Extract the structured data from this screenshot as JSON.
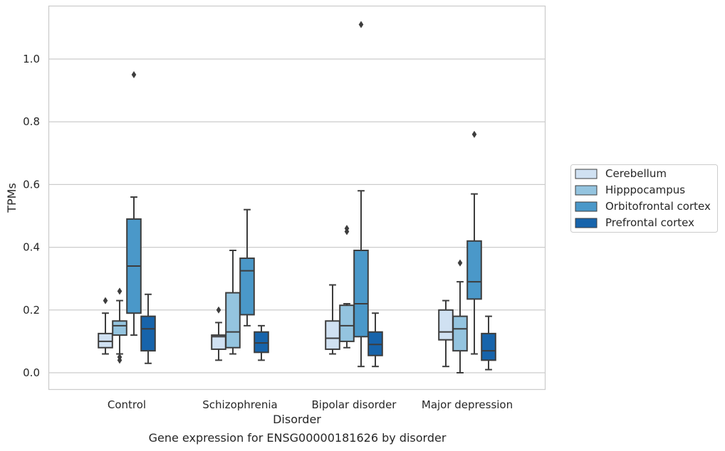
{
  "caption": "Gene expression for ENSG00000181626 by disorder",
  "chart_data": {
    "type": "box",
    "xlabel": "Disorder",
    "ylabel": "TPMs",
    "ylim": [
      -0.055,
      1.17
    ],
    "yticks": [
      0.0,
      0.2,
      0.4,
      0.6,
      0.8,
      1.0
    ],
    "ytick_labels": [
      "0.0",
      "0.2",
      "0.4",
      "0.6",
      "0.8",
      "1.0"
    ],
    "grid": "horizontal",
    "legend_position": "right",
    "categories": [
      "Control",
      "Schizophrenia",
      "Bipolar disorder",
      "Major depression"
    ],
    "series": [
      {
        "name": "Cerebellum",
        "color": "#d0e1f2",
        "boxes": [
          {
            "whisker_low": 0.06,
            "q1": 0.08,
            "median": 0.1,
            "q3": 0.125,
            "whisker_high": 0.19,
            "outliers": [
              0.23
            ]
          },
          {
            "whisker_low": 0.04,
            "q1": 0.075,
            "median": 0.115,
            "q3": 0.12,
            "whisker_high": 0.16,
            "outliers": [
              0.2
            ]
          },
          {
            "whisker_low": 0.06,
            "q1": 0.075,
            "median": 0.11,
            "q3": 0.165,
            "whisker_high": 0.28,
            "outliers": []
          },
          {
            "whisker_low": 0.02,
            "q1": 0.105,
            "median": 0.13,
            "q3": 0.2,
            "whisker_high": 0.23,
            "outliers": []
          }
        ]
      },
      {
        "name": "Hipppocampus",
        "color": "#94c4df",
        "boxes": [
          {
            "whisker_low": 0.06,
            "q1": 0.12,
            "median": 0.15,
            "q3": 0.165,
            "whisker_high": 0.23,
            "outliers": [
              0.26,
              0.05,
              0.04
            ]
          },
          {
            "whisker_low": 0.06,
            "q1": 0.08,
            "median": 0.13,
            "q3": 0.255,
            "whisker_high": 0.39,
            "outliers": []
          },
          {
            "whisker_low": 0.08,
            "q1": 0.1,
            "median": 0.15,
            "q3": 0.215,
            "whisker_high": 0.22,
            "outliers": [
              0.45,
              0.46
            ]
          },
          {
            "whisker_low": 0.0,
            "q1": 0.07,
            "median": 0.14,
            "q3": 0.18,
            "whisker_high": 0.29,
            "outliers": [
              0.35
            ]
          }
        ]
      },
      {
        "name": "Orbitofrontal cortex",
        "color": "#4a98c9",
        "boxes": [
          {
            "whisker_low": 0.12,
            "q1": 0.19,
            "median": 0.34,
            "q3": 0.49,
            "whisker_high": 0.56,
            "outliers": [
              0.95
            ]
          },
          {
            "whisker_low": 0.15,
            "q1": 0.185,
            "median": 0.325,
            "q3": 0.365,
            "whisker_high": 0.52,
            "outliers": []
          },
          {
            "whisker_low": 0.02,
            "q1": 0.115,
            "median": 0.22,
            "q3": 0.39,
            "whisker_high": 0.58,
            "outliers": [
              1.11
            ]
          },
          {
            "whisker_low": 0.06,
            "q1": 0.235,
            "median": 0.29,
            "q3": 0.42,
            "whisker_high": 0.57,
            "outliers": [
              0.76
            ]
          }
        ]
      },
      {
        "name": "Prefrontal cortex",
        "color": "#1764ab",
        "boxes": [
          {
            "whisker_low": 0.03,
            "q1": 0.07,
            "median": 0.14,
            "q3": 0.18,
            "whisker_high": 0.25,
            "outliers": []
          },
          {
            "whisker_low": 0.04,
            "q1": 0.065,
            "median": 0.095,
            "q3": 0.13,
            "whisker_high": 0.15,
            "outliers": []
          },
          {
            "whisker_low": 0.02,
            "q1": 0.055,
            "median": 0.09,
            "q3": 0.13,
            "whisker_high": 0.19,
            "outliers": []
          },
          {
            "whisker_low": 0.01,
            "q1": 0.04,
            "median": 0.07,
            "q3": 0.125,
            "whisker_high": 0.18,
            "outliers": []
          }
        ]
      }
    ]
  }
}
